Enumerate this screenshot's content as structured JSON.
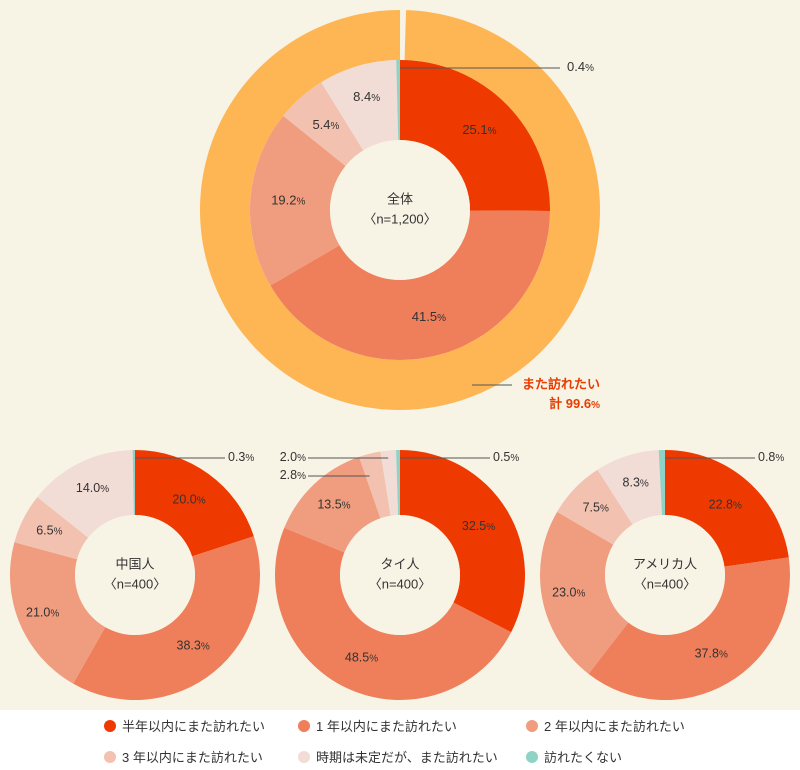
{
  "legend": [
    {
      "label": "半年以内にまた訪れたい",
      "color": "#ee3a00"
    },
    {
      "label": "1 年以内にまた訪れたい",
      "color": "#ef7e5a"
    },
    {
      "label": "2 年以内にまた訪れたい",
      "color": "#f09c7e"
    },
    {
      "label": "3 年以内にまた訪れたい",
      "color": "#f2c1b0"
    },
    {
      "label": "時期は未定だが、また訪れたい",
      "color": "#f1dcd6"
    },
    {
      "label": "訪れたくない",
      "color": "#8fd3c7"
    }
  ],
  "colors": {
    "background": "#f7f3e5",
    "outer_ring": "#fdb653",
    "total_text": "#e83c00",
    "center": "#f7f3e5",
    "leader": "#555555"
  },
  "chart_data": [
    {
      "type": "pie",
      "center_label": [
        "全体",
        "〈n=1,200〉"
      ],
      "categories": [
        "半年以内にまた訪れたい",
        "1 年以内にまた訪れたい",
        "2 年以内にまた訪れたい",
        "3 年以内にまた訪れたい",
        "時期は未定だが、また訪れたい",
        "訪れたくない"
      ],
      "values": [
        25.1,
        41.5,
        19.2,
        5.4,
        8.4,
        0.4
      ],
      "value_labels": [
        "25.1%",
        "41.5%",
        "19.2%",
        "5.4%",
        "8.4%",
        "0.4%"
      ],
      "outer_ring": {
        "value": 99.6,
        "label_line1": "また訪れたい",
        "label_line2": "計 99.6%"
      }
    },
    {
      "type": "pie",
      "center_label": [
        "中国人",
        "〈n=400〉"
      ],
      "categories": [
        "半年以内にまた訪れたい",
        "1 年以内にまた訪れたい",
        "2 年以内にまた訪れたい",
        "3 年以内にまた訪れたい",
        "時期は未定だが、また訪れたい",
        "訪れたくない"
      ],
      "values": [
        20.0,
        38.3,
        21.0,
        6.5,
        14.0,
        0.3
      ],
      "value_labels": [
        "20.0%",
        "38.3%",
        "21.0%",
        "6.5%",
        "14.0%",
        "0.3%"
      ]
    },
    {
      "type": "pie",
      "center_label": [
        "タイ人",
        "〈n=400〉"
      ],
      "categories": [
        "半年以内にまた訪れたい",
        "1 年以内にまた訪れたい",
        "2 年以内にまた訪れたい",
        "3 年以内にまた訪れたい",
        "時期は未定だが、また訪れたい",
        "訪れたくない"
      ],
      "values": [
        32.5,
        48.5,
        13.5,
        2.8,
        2.0,
        0.5
      ],
      "value_labels": [
        "32.5%",
        "48.5%",
        "13.5%",
        "2.8%",
        "2.0%",
        "0.5%"
      ]
    },
    {
      "type": "pie",
      "center_label": [
        "アメリカ人",
        "〈n=400〉"
      ],
      "categories": [
        "半年以内にまた訪れたい",
        "1 年以内にまた訪れたい",
        "2 年以内にまた訪れたい",
        "3 年以内にまた訪れたい",
        "時期は未定だが、また訪れたい",
        "訪れたくない"
      ],
      "values": [
        22.8,
        37.8,
        23.0,
        7.5,
        8.3,
        0.8
      ],
      "value_labels": [
        "22.8%",
        "37.8%",
        "23.0%",
        "7.5%",
        "8.3%",
        "0.8%"
      ]
    }
  ]
}
